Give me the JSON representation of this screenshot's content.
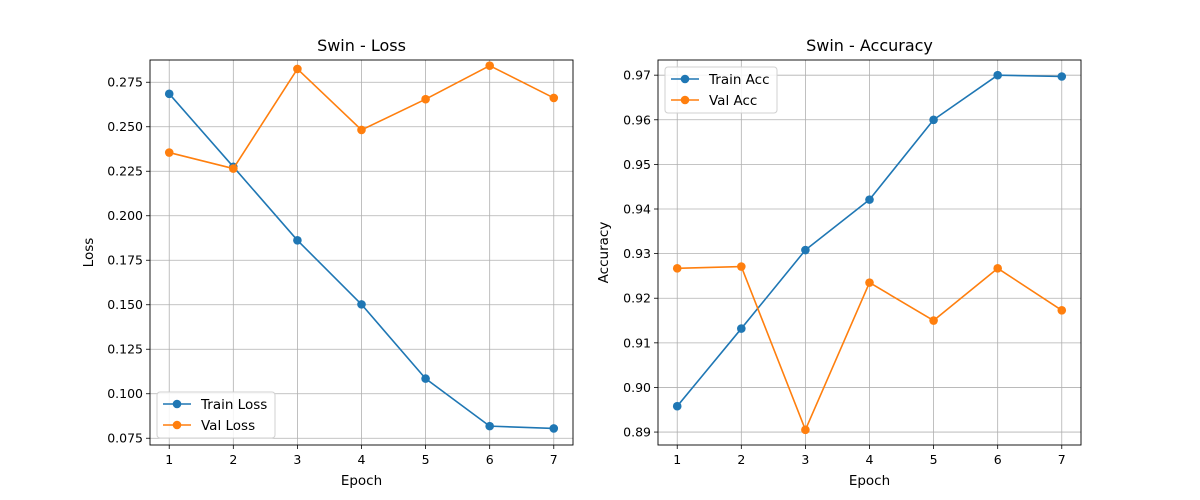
{
  "chart_data": [
    {
      "type": "line",
      "title": "Swin - Loss",
      "xlabel": "Epoch",
      "ylabel": "Loss",
      "x": [
        1,
        2,
        3,
        4,
        5,
        6,
        7
      ],
      "xlim": [
        0.7,
        7.3
      ],
      "ylim": [
        0.0712,
        0.2875
      ],
      "xticks": [
        "1",
        "2",
        "3",
        "4",
        "5",
        "6",
        "7"
      ],
      "yticks": [
        "0.075",
        "0.100",
        "0.125",
        "0.150",
        "0.175",
        "0.200",
        "0.225",
        "0.250",
        "0.275"
      ],
      "grid": true,
      "legend_position": "lower-left",
      "series": [
        {
          "name": "Train Loss",
          "color": "#1f77b4",
          "marker": "circle",
          "values": [
            0.2685,
            0.2275,
            0.1862,
            0.1502,
            0.1085,
            0.0818,
            0.0805
          ]
        },
        {
          "name": "Val Loss",
          "color": "#ff7f0e",
          "marker": "circle",
          "values": [
            0.2355,
            0.2265,
            0.2825,
            0.2482,
            0.2655,
            0.2843,
            0.2662
          ]
        }
      ]
    },
    {
      "type": "line",
      "title": "Swin - Accuracy",
      "xlabel": "Epoch",
      "ylabel": "Accuracy",
      "x": [
        1,
        2,
        3,
        4,
        5,
        6,
        7
      ],
      "xlim": [
        0.7,
        7.3
      ],
      "ylim": [
        0.8871,
        0.9734
      ],
      "xticks": [
        "1",
        "2",
        "3",
        "4",
        "5",
        "6",
        "7"
      ],
      "yticks": [
        "0.89",
        "0.90",
        "0.91",
        "0.92",
        "0.93",
        "0.94",
        "0.95",
        "0.96",
        "0.97"
      ],
      "grid": true,
      "legend_position": "upper-left",
      "series": [
        {
          "name": "Train Acc",
          "color": "#1f77b4",
          "marker": "circle",
          "values": [
            0.8958,
            0.9132,
            0.9308,
            0.9421,
            0.96,
            0.97,
            0.9697
          ]
        },
        {
          "name": "Val Acc",
          "color": "#ff7f0e",
          "marker": "circle",
          "values": [
            0.9267,
            0.9271,
            0.8905,
            0.9235,
            0.915,
            0.9267,
            0.9173
          ]
        }
      ]
    }
  ]
}
